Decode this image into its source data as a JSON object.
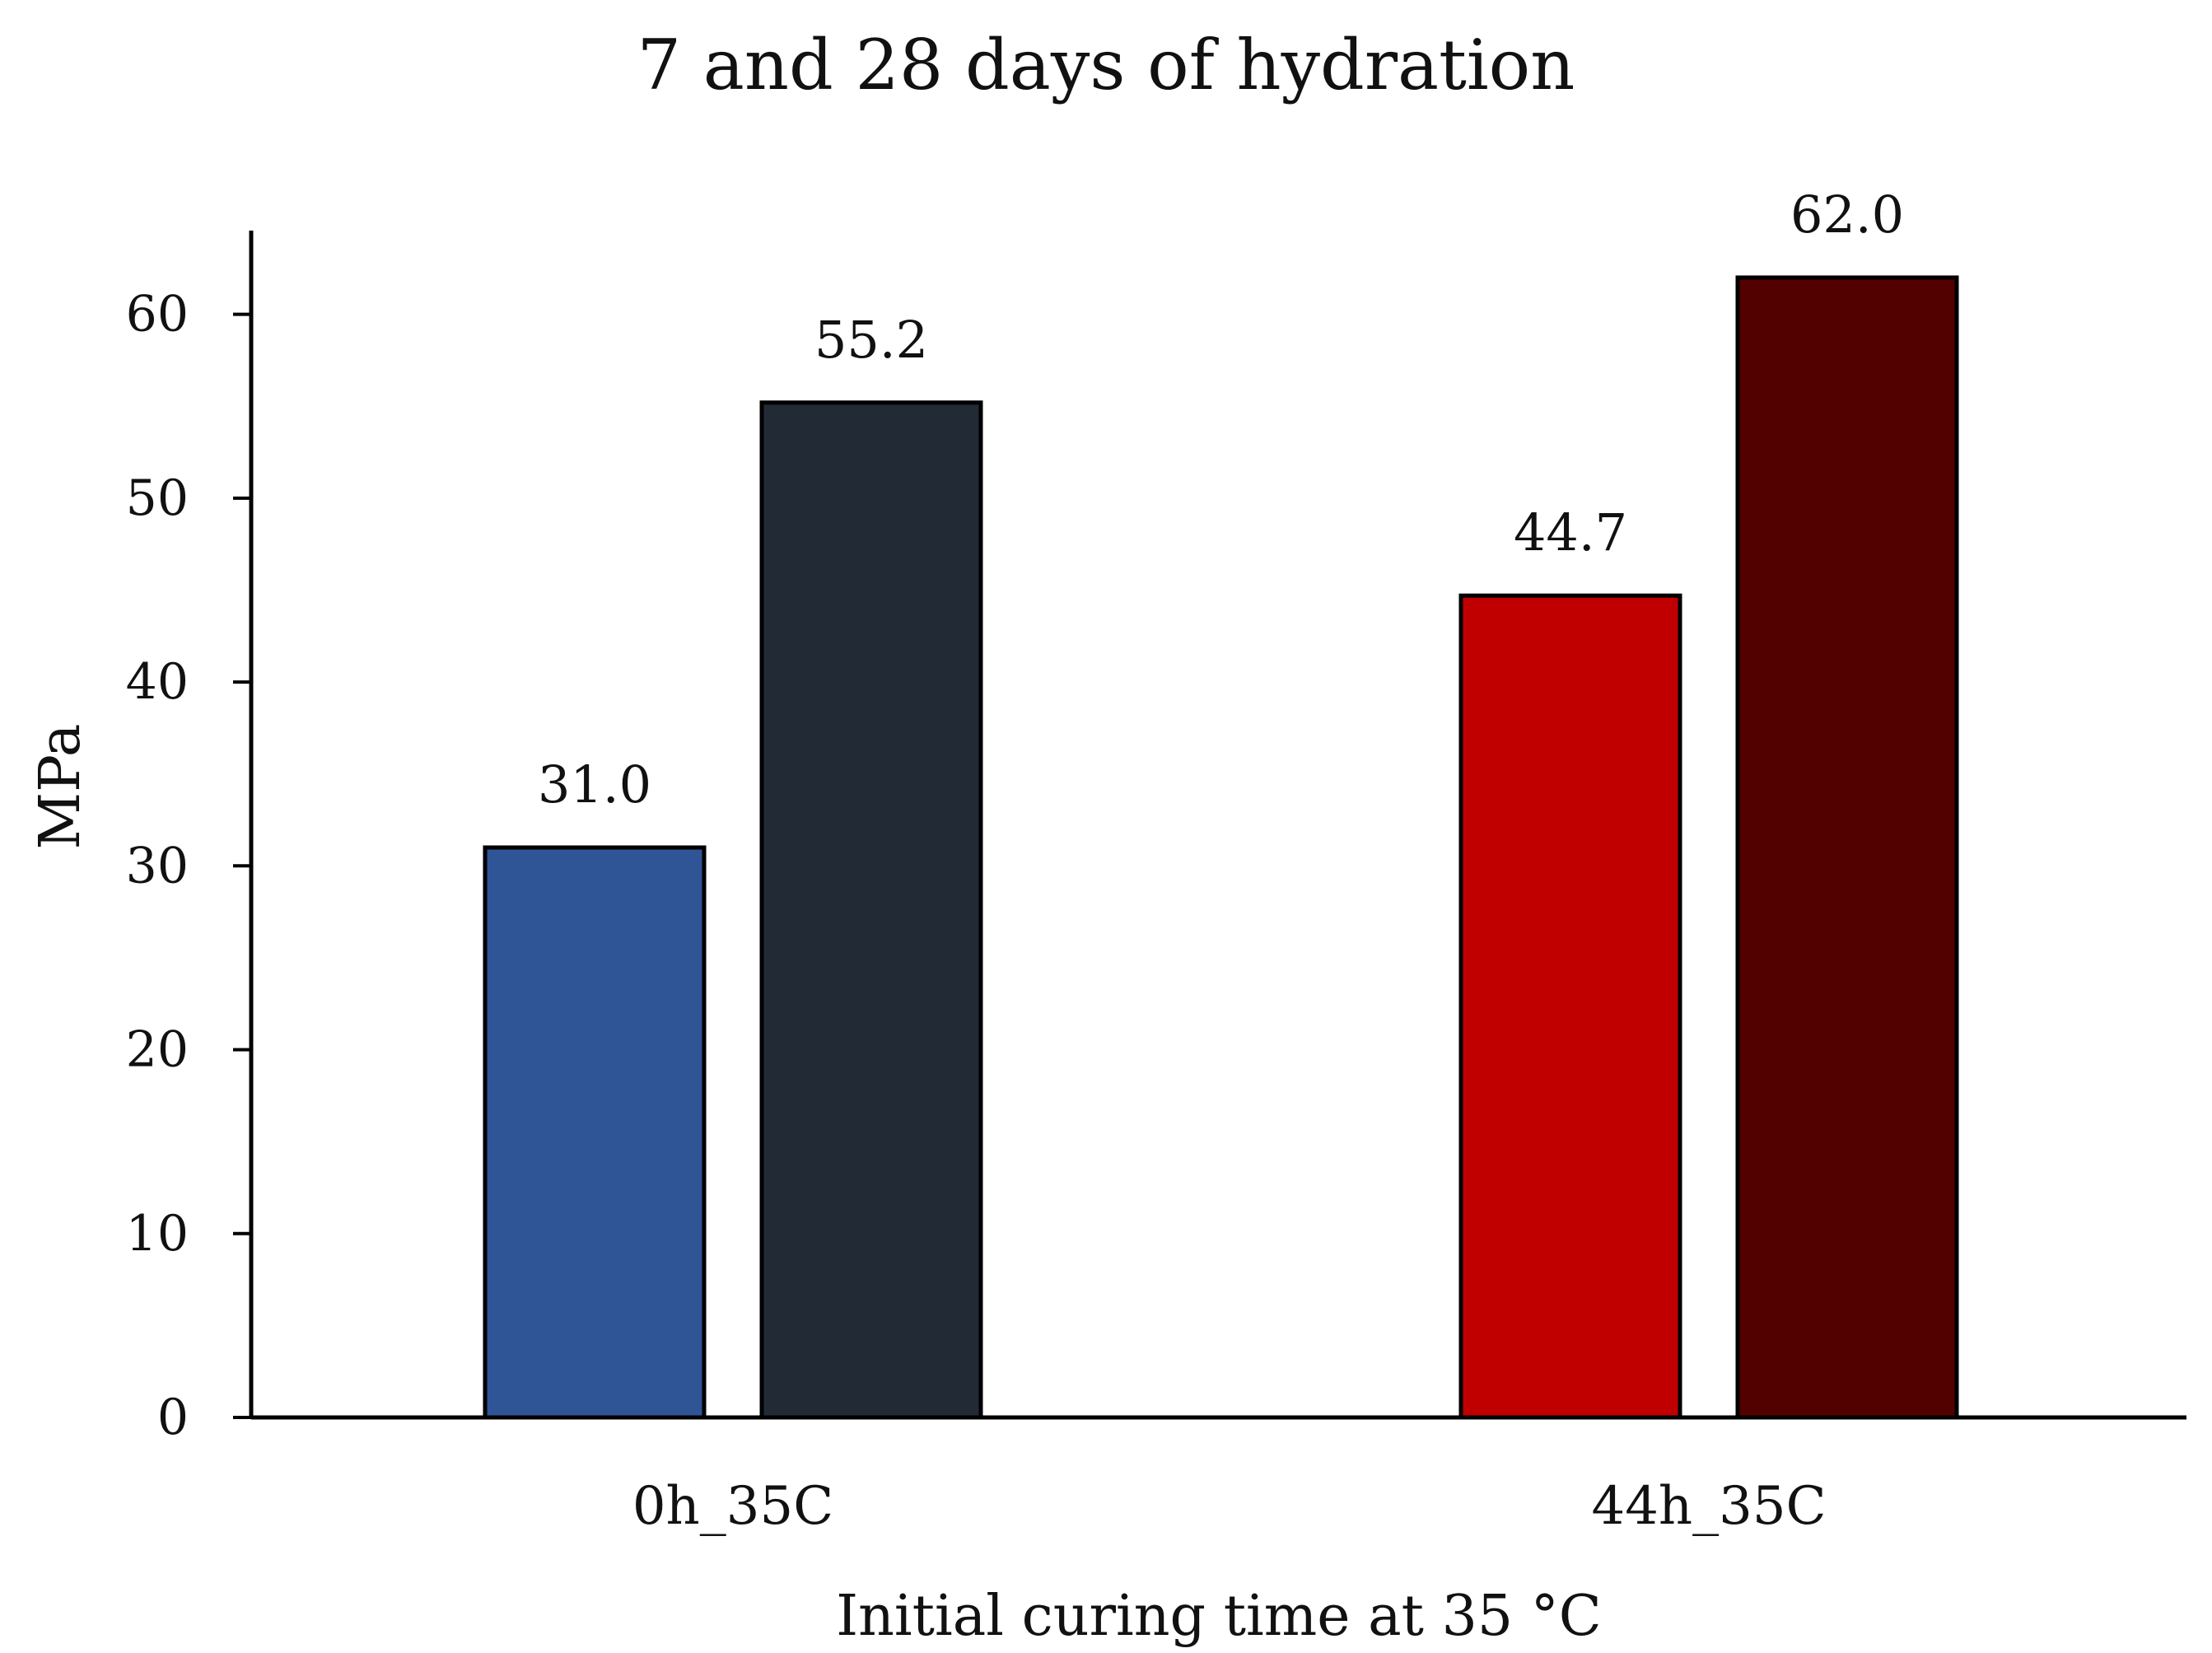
{
  "chart_data": {
    "type": "bar",
    "title": "7 and 28 days of hydration",
    "xlabel": "Initial curing time at 35 °C",
    "ylabel": "MPa",
    "ylim": [
      0,
      65
    ],
    "yticks": [
      0,
      10,
      20,
      30,
      40,
      50,
      60
    ],
    "grid": false,
    "legend": null,
    "categories": [
      "0h_35C",
      "44h_35C"
    ],
    "bars": [
      {
        "category": "0h_35C",
        "value": 31.0,
        "label": "31.0",
        "color": "#2f5597"
      },
      {
        "category": "0h_35C",
        "value": 55.2,
        "label": "55.2",
        "color": "#222a35"
      },
      {
        "category": "44h_35C",
        "value": 44.7,
        "label": "44.7",
        "color": "#c00000"
      },
      {
        "category": "44h_35C",
        "value": 62.0,
        "label": "62.0",
        "color": "#530000"
      }
    ]
  }
}
